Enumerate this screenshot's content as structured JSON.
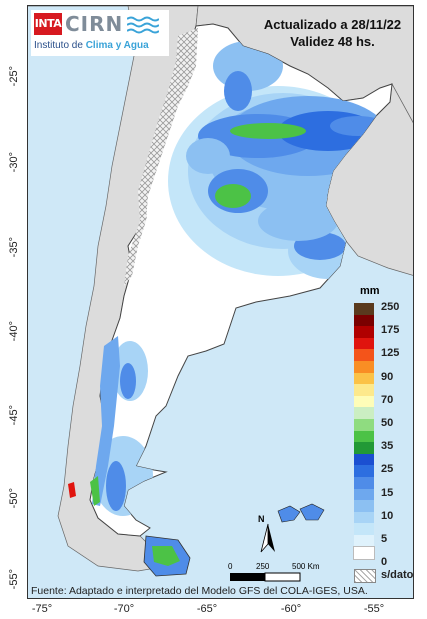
{
  "logo": {
    "inta": "INTA",
    "cirn": "CIRN",
    "institute_prefix": "Instituto de ",
    "institute_accent": "Clima y Agua"
  },
  "header": {
    "updated": "Actualizado a 28/11/22",
    "validity": "Validez 48 hs."
  },
  "axes": {
    "latitudes": [
      "-25°",
      "-30°",
      "-35°",
      "-40°",
      "-45°",
      "-50°",
      "-55°"
    ],
    "longitudes": [
      "-75°",
      "-70°",
      "-65°",
      "-60°",
      "-55°"
    ]
  },
  "legend": {
    "unit": "mm",
    "labels": [
      "250",
      "175",
      "125",
      "90",
      "70",
      "50",
      "35",
      "25",
      "15",
      "10",
      "5",
      "0"
    ],
    "colors": [
      "#5a3a1e",
      "#7a0000",
      "#b00000",
      "#e0140e",
      "#f4541a",
      "#f98e24",
      "#fbc247",
      "#fde98c",
      "#fefdb8",
      "#cbeec2",
      "#8fdc80",
      "#4cc246",
      "#229936",
      "#1b4fd1",
      "#2d6ee0",
      "#4f8ce8",
      "#6ea8ee",
      "#8cc0f2",
      "#a8d4f6",
      "#c4e6f9",
      "#dff2fc",
      "#ffffff"
    ],
    "no_data": "s/dato"
  },
  "scale_bar": {
    "labels": [
      "0",
      "250",
      "500 Km"
    ],
    "north": "N"
  },
  "footer": "Fuente: Adaptado e interpretado del Modelo GFS del COLA-IGES, USA.",
  "colors": {
    "ocean": "#cfe8f7",
    "neighbors": "#dcdcdc",
    "argentina_dry": "#ffffff"
  }
}
